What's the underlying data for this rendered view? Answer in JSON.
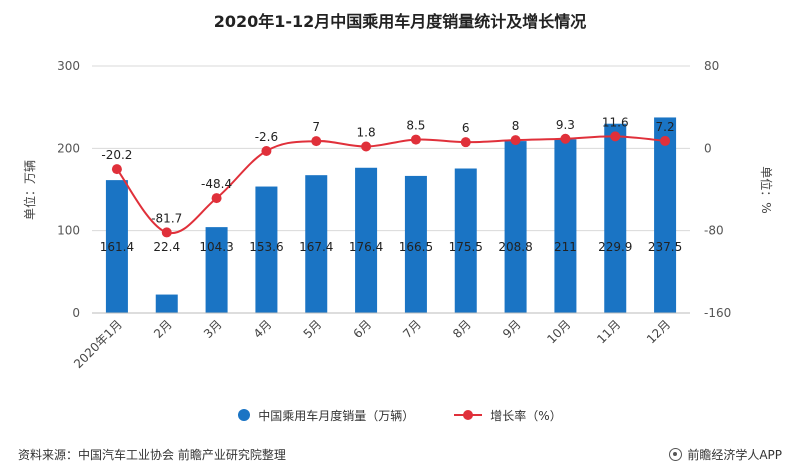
{
  "title": "2020年1-12月中国乘用车月度销量统计及增长情况",
  "left_axis_label": "单位：万辆",
  "right_axis_label": "单位：%",
  "legend": {
    "bar_label": "中国乘用车月度销量（万辆）",
    "line_label": "增长率（%）"
  },
  "footer": {
    "source": "资料来源：中国汽车工业协会 前瞻产业研究院整理",
    "brand": "前瞻经济学人APP"
  },
  "chart_data": {
    "type": "bar",
    "title": "2020年1-12月中国乘用车月度销量统计及增长情况",
    "categories": [
      "2020年1月",
      "2月",
      "3月",
      "4月",
      "5月",
      "6月",
      "7月",
      "8月",
      "9月",
      "10月",
      "11月",
      "12月"
    ],
    "series": [
      {
        "name": "中国乘用车月度销量（万辆）",
        "type": "bar",
        "axis": "left",
        "values": [
          161.4,
          22.4,
          104.3,
          153.6,
          167.4,
          176.4,
          166.5,
          175.5,
          208.8,
          211,
          229.9,
          237.5
        ],
        "labels": [
          "161.4",
          "22.4",
          "104.3",
          "153.6",
          "167.4",
          "176.4",
          "166.5",
          "175.5",
          "208.8",
          "211",
          "229.9",
          "237.5"
        ],
        "color": "#1a74c4"
      },
      {
        "name": "增长率（%）",
        "type": "line",
        "axis": "right",
        "values": [
          -20.2,
          -81.7,
          -48.4,
          -2.6,
          7,
          1.8,
          8.5,
          6,
          8,
          9.3,
          11.6,
          7.2
        ],
        "labels": [
          "-20.2",
          "-81.7",
          "-48.4",
          "-2.6",
          "7",
          "1.8",
          "8.5",
          "6",
          "8",
          "9.3",
          "11.6",
          "7.2"
        ],
        "color": "#e0303a"
      }
    ],
    "left_axis": {
      "min": 0,
      "max": 300,
      "ticks": [
        0,
        100,
        200,
        300
      ],
      "label": "单位：万辆"
    },
    "right_axis": {
      "min": -160,
      "max": 80,
      "ticks": [
        -160,
        -80,
        0,
        80
      ],
      "label": "单位：%"
    },
    "grid": true,
    "legend_position": "bottom"
  }
}
